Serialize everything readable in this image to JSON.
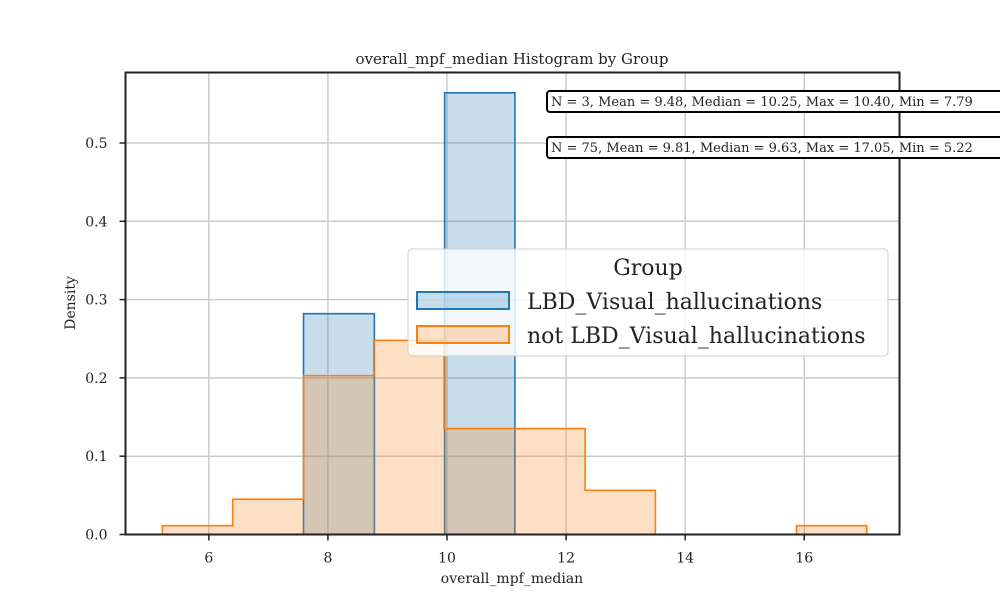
{
  "chart_data": {
    "type": "histogram",
    "title": "overall_mpf_median Histogram by Group",
    "xlabel": "overall_mpf_median",
    "ylabel": "Density",
    "xlim": [
      4.6,
      17.6
    ],
    "ylim": [
      0,
      0.59
    ],
    "x_ticks": [
      6,
      8,
      10,
      12,
      14,
      16
    ],
    "y_ticks": [
      0.0,
      0.1,
      0.2,
      0.3,
      0.4,
      0.5
    ],
    "grid": true,
    "legend": {
      "title": "Group",
      "placement": "center-right"
    },
    "series": [
      {
        "name": "LBD_Visual_hallucinations",
        "color": "#1f77b4",
        "bins": [
          {
            "x0": 7.59,
            "x1": 8.78,
            "density": 0.282
          },
          {
            "x0": 8.78,
            "x1": 9.96,
            "density": 0.0
          },
          {
            "x0": 9.96,
            "x1": 11.14,
            "density": 0.564
          }
        ]
      },
      {
        "name": "not LBD_Visual_hallucinations",
        "color": "#ff7f0e",
        "bins": [
          {
            "x0": 5.22,
            "x1": 6.4,
            "density": 0.0113
          },
          {
            "x0": 6.4,
            "x1": 7.59,
            "density": 0.0451
          },
          {
            "x0": 7.59,
            "x1": 8.77,
            "density": 0.2029
          },
          {
            "x0": 8.77,
            "x1": 9.95,
            "density": 0.248
          },
          {
            "x0": 9.95,
            "x1": 11.14,
            "density": 0.1353
          },
          {
            "x0": 11.14,
            "x1": 12.32,
            "density": 0.1353
          },
          {
            "x0": 12.32,
            "x1": 13.5,
            "density": 0.0564
          },
          {
            "x0": 13.5,
            "x1": 14.69,
            "density": 0.0
          },
          {
            "x0": 14.69,
            "x1": 15.87,
            "density": 0.0
          },
          {
            "x0": 15.87,
            "x1": 17.05,
            "density": 0.0113
          }
        ]
      }
    ],
    "annotations": [
      "N = 3, Mean = 9.48, Median = 10.25, Max = 10.40, Min = 7.79",
      "N = 75, Mean = 9.81, Median = 9.63, Max = 17.05, Min = 5.22"
    ]
  }
}
